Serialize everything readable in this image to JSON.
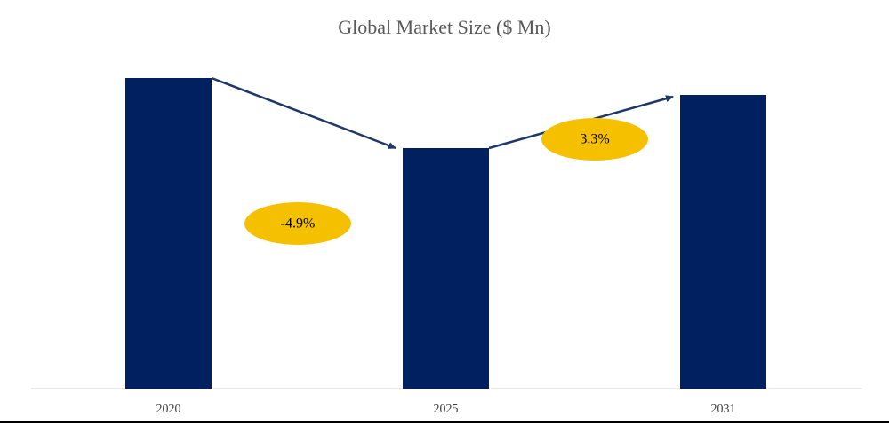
{
  "chart_data": {
    "type": "bar",
    "title": "Global Market Size ($ Mn)",
    "categories": [
      "2020",
      "2025",
      "2031"
    ],
    "values": [
      350,
      271,
      331
    ],
    "color": "#002060",
    "ylim": [
      0,
      400
    ],
    "annotations": [
      {
        "text": "-4.9%",
        "color": "#f5c000"
      },
      {
        "text": "3.3%",
        "color": "#f5c000"
      }
    ],
    "arrow_color": "#1f3868"
  }
}
